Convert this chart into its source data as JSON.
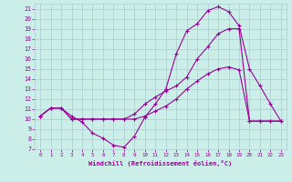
{
  "xlabel": "Windchill (Refroidissement éolien,°C)",
  "background_color": "#cceee8",
  "grid_color": "#aacccc",
  "line_color": "#990099",
  "xlim": [
    -0.5,
    23.5
  ],
  "ylim": [
    7,
    21.5
  ],
  "xticks": [
    0,
    1,
    2,
    3,
    4,
    5,
    6,
    7,
    8,
    9,
    10,
    11,
    12,
    13,
    14,
    15,
    16,
    17,
    18,
    19,
    20,
    21,
    22,
    23
  ],
  "yticks": [
    7,
    8,
    9,
    10,
    11,
    12,
    13,
    14,
    15,
    16,
    17,
    18,
    19,
    20,
    21
  ],
  "line1_x": [
    0,
    1,
    2,
    3,
    4,
    5,
    6,
    7,
    8,
    9,
    10,
    11,
    12,
    13,
    14,
    15,
    16,
    17,
    18,
    19,
    20,
    21,
    22,
    23
  ],
  "line1_y": [
    10.3,
    11.1,
    11.1,
    10.3,
    9.7,
    8.6,
    8.1,
    7.4,
    7.2,
    8.3,
    10.2,
    11.5,
    13.0,
    16.5,
    18.8,
    19.5,
    20.8,
    21.2,
    20.7,
    19.3,
    15.0,
    13.3,
    11.5,
    9.8
  ],
  "line2_x": [
    0,
    1,
    2,
    3,
    4,
    5,
    6,
    7,
    8,
    9,
    10,
    11,
    12,
    13,
    14,
    15,
    16,
    17,
    18,
    19,
    20,
    21,
    22,
    23
  ],
  "line2_y": [
    10.3,
    11.1,
    11.1,
    10.0,
    10.0,
    10.0,
    10.0,
    10.0,
    10.0,
    10.0,
    10.3,
    10.8,
    11.3,
    12.0,
    13.0,
    13.8,
    14.5,
    15.0,
    15.2,
    14.9,
    9.8,
    9.8,
    9.8,
    9.8
  ],
  "line3_x": [
    0,
    1,
    2,
    3,
    4,
    5,
    6,
    7,
    8,
    9,
    10,
    11,
    12,
    13,
    14,
    15,
    16,
    17,
    18,
    19,
    20,
    21,
    22,
    23
  ],
  "line3_y": [
    10.3,
    11.1,
    11.1,
    10.0,
    10.0,
    10.0,
    10.0,
    10.0,
    10.0,
    10.5,
    11.5,
    12.2,
    12.8,
    13.3,
    14.2,
    16.0,
    17.2,
    18.5,
    19.0,
    19.0,
    9.8,
    9.8,
    9.8,
    9.8
  ]
}
